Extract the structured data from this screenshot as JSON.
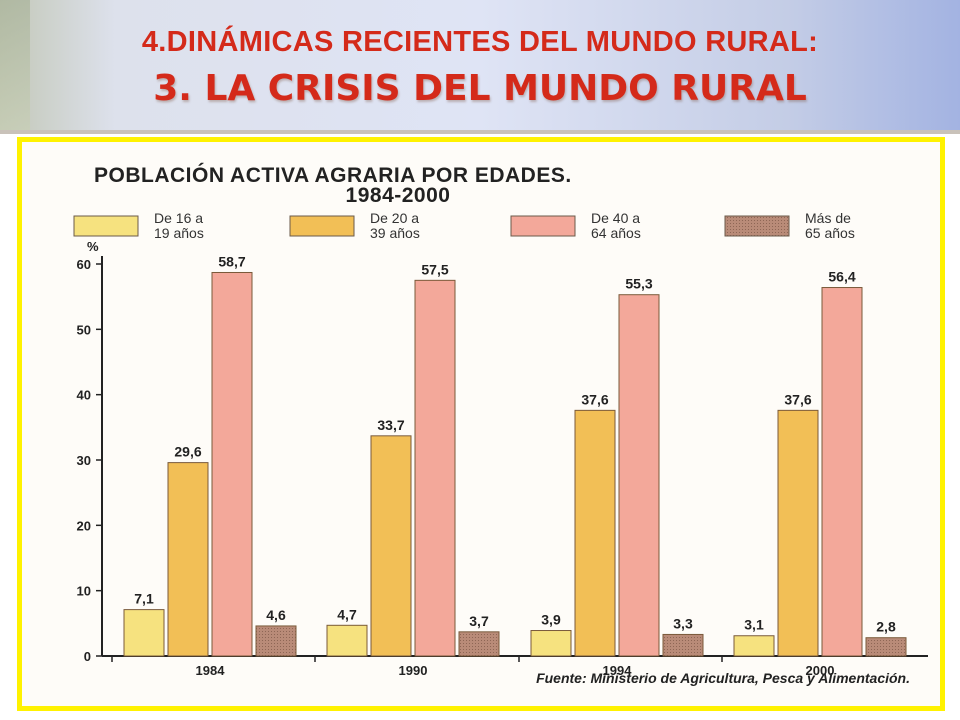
{
  "header": {
    "title": "4.DINÁMICAS RECIENTES DEL MUNDO RURAL:",
    "subtitle": "3.  LA CRISIS DEL MUNDO RURAL"
  },
  "chart_data": {
    "type": "bar",
    "title_line1": "POBLACIÓN ACTIVA AGRARIA POR EDADES.",
    "title_line2": "1984-2000",
    "ylabel": "%",
    "xlabel": "",
    "ylim": [
      0,
      60
    ],
    "yticks": [
      "0",
      "10",
      "20",
      "30",
      "40",
      "50",
      "60"
    ],
    "categories": [
      "1984",
      "1990",
      "1994",
      "2000"
    ],
    "series": [
      {
        "name_line1": "De 16 a",
        "name_line2": "19 años",
        "color": "#f6e27f",
        "values": [
          7.1,
          4.7,
          3.9,
          3.1
        ],
        "labels": [
          "7,1",
          "4,7",
          "3,9",
          "3,1"
        ]
      },
      {
        "name_line1": "De 20 a",
        "name_line2": "39 años",
        "color": "#f2bf56",
        "values": [
          29.6,
          33.7,
          37.6,
          37.6
        ],
        "labels": [
          "29,6",
          "33,7",
          "37,6",
          "37,6"
        ]
      },
      {
        "name_line1": "De 40 a",
        "name_line2": "64 años",
        "color": "#f3a89a",
        "values": [
          58.7,
          57.5,
          55.3,
          56.4
        ],
        "labels": [
          "58,7",
          "57,5",
          "55,3",
          "56,4"
        ]
      },
      {
        "name_line1": "Más de",
        "name_line2": "65 años",
        "color": "#b98b78",
        "values": [
          4.6,
          3.7,
          3.3,
          2.8
        ],
        "labels": [
          "4,6",
          "3,7",
          "3,3",
          "2,8"
        ]
      }
    ],
    "grid": false,
    "legend_position": "top",
    "source": "Fuente: Ministerio de Agricultura, Pesca y Alimentación."
  }
}
